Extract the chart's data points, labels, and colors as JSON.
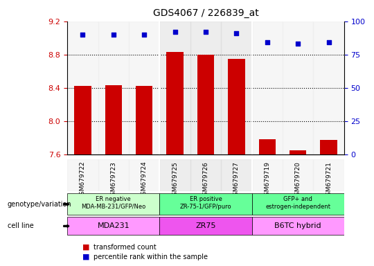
{
  "title": "GDS4067 / 226839_at",
  "samples": [
    "GSM679722",
    "GSM679723",
    "GSM679724",
    "GSM679725",
    "GSM679726",
    "GSM679727",
    "GSM679719",
    "GSM679720",
    "GSM679721"
  ],
  "bar_values": [
    8.42,
    8.43,
    8.42,
    8.83,
    8.8,
    8.75,
    7.78,
    7.65,
    7.77
  ],
  "dot_values": [
    90,
    90,
    90,
    92,
    92,
    91,
    84,
    83,
    84
  ],
  "ylim_left": [
    7.6,
    9.2
  ],
  "ylim_right": [
    0,
    100
  ],
  "yticks_left": [
    7.6,
    8.0,
    8.4,
    8.8,
    9.2
  ],
  "yticks_right": [
    0,
    25,
    50,
    75,
    100
  ],
  "bar_color": "#cc0000",
  "dot_color": "#0000cc",
  "bar_width": 0.55,
  "groups": [
    {
      "label": "ER negative\nMDA-MB-231/GFP/Neo",
      "cell_line": "MDA231",
      "indices": [
        0,
        1,
        2
      ],
      "genotype_color": "#ccffcc",
      "cell_line_color": "#ff99ff"
    },
    {
      "label": "ER positive\nZR-75-1/GFP/puro",
      "cell_line": "ZR75",
      "indices": [
        3,
        4,
        5
      ],
      "genotype_color": "#66ff66",
      "cell_line_color": "#ff55ff"
    },
    {
      "label": "GFP+ and\nestrogen-independent",
      "cell_line": "B6TC hybrid",
      "indices": [
        6,
        7,
        8
      ],
      "genotype_color": "#66ff66",
      "cell_line_color": "#ff99ff"
    }
  ],
  "legend_items": [
    {
      "label": "transformed count",
      "color": "#cc0000",
      "marker": "s"
    },
    {
      "label": "percentile rank within the sample",
      "color": "#0000cc",
      "marker": "s"
    }
  ],
  "left_labels": [
    "genotype/variation",
    "cell line"
  ],
  "xlabel_color": "#cc0000",
  "ylabel_right_color": "#0000cc",
  "gridline_style": "dotted",
  "background_color": "#ffffff",
  "sample_bg_color": "#dddddd"
}
